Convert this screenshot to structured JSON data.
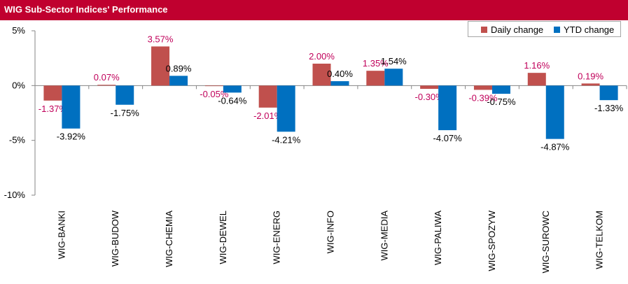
{
  "header": {
    "title": "WIG Sub-Sector Indices' Performance",
    "bar_color": "#c0002f"
  },
  "chart_data": {
    "type": "bar",
    "title": "WIG Sub-Sector Indices' Performance",
    "categories": [
      "WIG-BANKI",
      "WIG-BUDOW",
      "WIG-CHEMIA",
      "WIG-DEWEL",
      "WIG-ENERG",
      "WIG-INFO",
      "WIG-MEDIA",
      "WIG-PALIWA",
      "WIG-SPOZYW",
      "WIG-SUROWC",
      "WIG-TELKOM"
    ],
    "series": [
      {
        "name": "Daily change",
        "color": "#c0504d",
        "label_color": "#c0005a",
        "values": [
          -1.37,
          0.07,
          3.57,
          -0.05,
          -2.01,
          2.0,
          1.35,
          -0.3,
          -0.39,
          1.16,
          0.19
        ],
        "labels": [
          "-1.37%",
          "0.07%",
          "3.57%",
          "-0.05%",
          "-2.01%",
          "2.00%",
          "1.35%",
          "-0.30%",
          "-0.39%",
          "1.16%",
          "0.19%"
        ]
      },
      {
        "name": "YTD change",
        "color": "#0070c0",
        "label_color": "#000000",
        "values": [
          -3.92,
          -1.75,
          0.89,
          -0.64,
          -4.21,
          0.4,
          1.54,
          -4.07,
          -0.75,
          -4.87,
          -1.33
        ],
        "labels": [
          "-3.92%",
          "-1.75%",
          "0.89%",
          "-0.64%",
          "-4.21%",
          "0.40%",
          "1.54%",
          "-4.07%",
          "-0.75%",
          "-4.87%",
          "-1.33%"
        ]
      }
    ],
    "y_ticks": [
      5,
      0,
      -5,
      -10
    ],
    "y_tick_labels": [
      "5%",
      "0%",
      "-5%",
      "-10%"
    ],
    "ylim": [
      -10,
      5
    ],
    "legend_position": "top-right",
    "grid": false
  }
}
